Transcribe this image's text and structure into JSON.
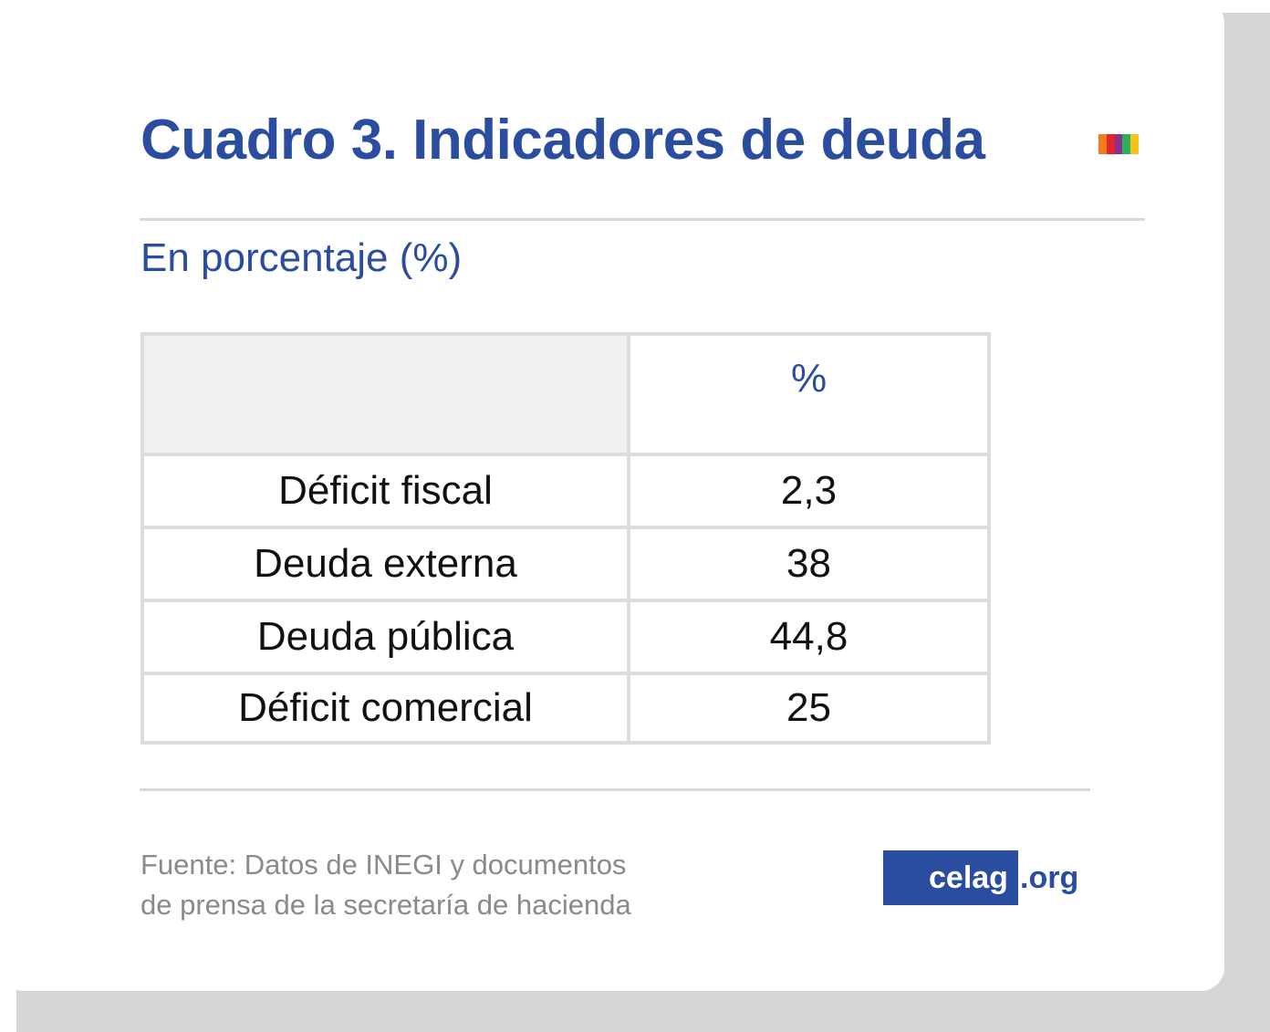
{
  "header": {
    "title": "Cuadro 3. Indicadores de deuda",
    "subtitle": "En porcentaje (%)",
    "color_bars": [
      "#f47c20",
      "#e3262d",
      "#8d2f8e",
      "#2bb05a",
      "#f6c21b"
    ]
  },
  "table": {
    "columns": [
      "",
      "%"
    ],
    "rows": [
      {
        "label": "Déficit fiscal",
        "value": "2,3"
      },
      {
        "label": "Deuda externa",
        "value": "38"
      },
      {
        "label": "Deuda pública",
        "value": "44,8"
      },
      {
        "label": "Déficit comercial",
        "value": "25"
      }
    ]
  },
  "footer": {
    "source_line1": "Fuente: Datos de INEGI y documentos",
    "source_line2": "de prensa de la secretaría de hacienda",
    "brand_main": "celag",
    "brand_ext": ".org"
  },
  "colors": {
    "accent": "#2a4da0",
    "muted": "#8a8a8a",
    "rule": "#d8d8d8",
    "header_cell": "#f0f0f0",
    "shadow": "#d6d6d6"
  }
}
